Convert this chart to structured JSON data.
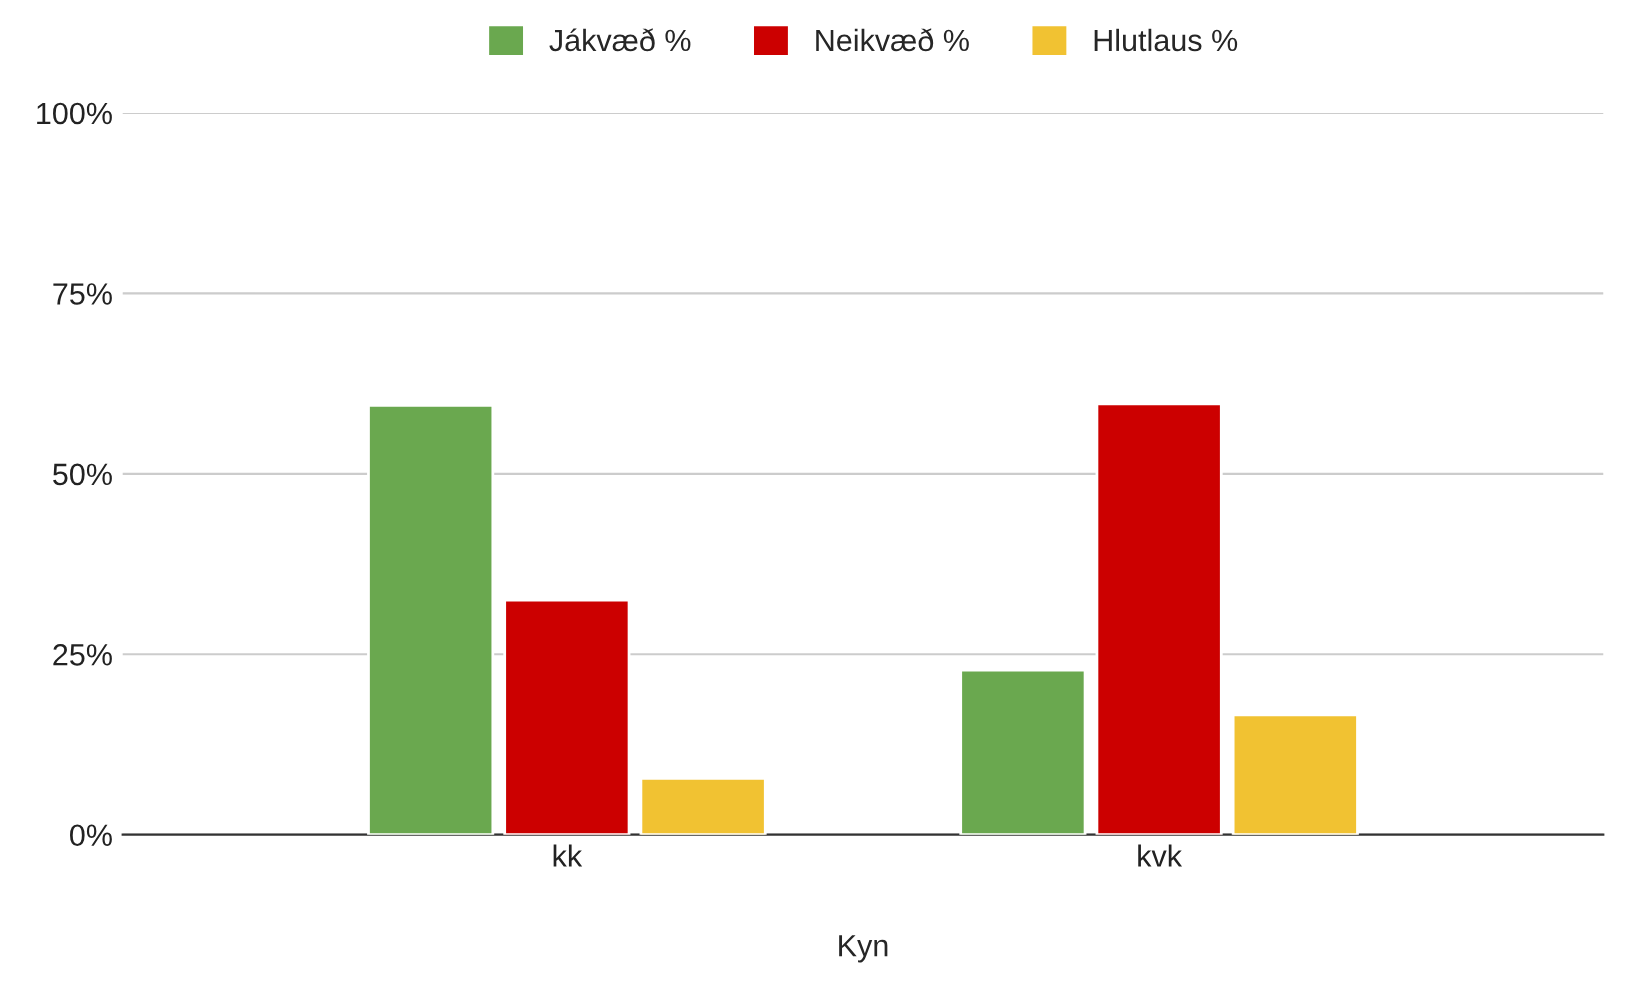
{
  "chart_data": {
    "type": "bar",
    "xlabel": "Kyn",
    "categories": [
      "kk",
      "kvk"
    ],
    "series": [
      {
        "name": "Jákvæð %",
        "color": "#6aa84f",
        "values": [
          59.5,
          22.8
        ]
      },
      {
        "name": "Neikvæð %",
        "color": "#cc0000",
        "values": [
          32.5,
          59.7
        ]
      },
      {
        "name": "Hlutlaus %",
        "color": "#f1c232",
        "values": [
          7.8,
          16.6
        ]
      }
    ],
    "ylim": [
      0,
      100
    ],
    "yticks": [
      {
        "value": 0,
        "label": "0%"
      },
      {
        "value": 25,
        "label": "25%"
      },
      {
        "value": 50,
        "label": "50%"
      },
      {
        "value": 75,
        "label": "75%"
      },
      {
        "value": 100,
        "label": "100%"
      }
    ],
    "grid": "y",
    "legend": "top"
  }
}
